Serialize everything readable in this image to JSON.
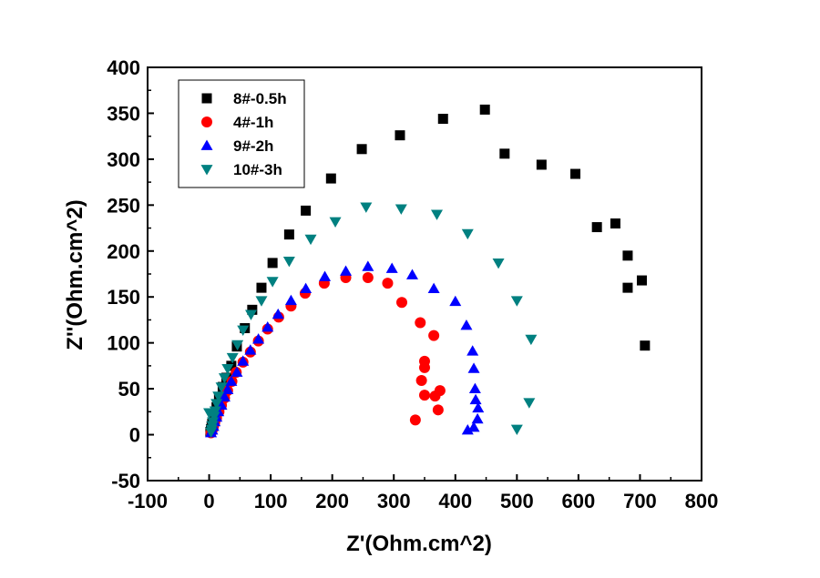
{
  "chart_data": {
    "type": "scatter",
    "title": "",
    "xlabel": "Z'(Ohm.cm^2)",
    "ylabel": "Z''(Ohm.cm^2)",
    "xlim": [
      -100,
      800
    ],
    "ylim": [
      -50,
      400
    ],
    "x_ticks": [
      "-100",
      "0",
      "100",
      "200",
      "300",
      "400",
      "500",
      "600",
      "700",
      "800"
    ],
    "y_ticks": [
      "-50",
      "0",
      "50",
      "100",
      "150",
      "200",
      "250",
      "300",
      "350",
      "400"
    ],
    "grid": false,
    "legend_position": "top-left",
    "series": [
      {
        "name": "8#-0.5h",
        "marker": "square",
        "color": "#000000",
        "points": [
          [
            2,
            3
          ],
          [
            3,
            6
          ],
          [
            4,
            9
          ],
          [
            5,
            12
          ],
          [
            7,
            16
          ],
          [
            9,
            22
          ],
          [
            12,
            30
          ],
          [
            16,
            40
          ],
          [
            22,
            52
          ],
          [
            28,
            62
          ],
          [
            36,
            75
          ],
          [
            45,
            96
          ],
          [
            58,
            116
          ],
          [
            70,
            136
          ],
          [
            85,
            160
          ],
          [
            103,
            187
          ],
          [
            130,
            218
          ],
          [
            157,
            244
          ],
          [
            198,
            279
          ],
          [
            248,
            311
          ],
          [
            310,
            326
          ],
          [
            380,
            344
          ],
          [
            448,
            354
          ],
          [
            480,
            306
          ],
          [
            540,
            294
          ],
          [
            595,
            284
          ],
          [
            630,
            226
          ],
          [
            660,
            230
          ],
          [
            680,
            195
          ],
          [
            680,
            160
          ],
          [
            703,
            168
          ],
          [
            708,
            97
          ]
        ]
      },
      {
        "name": "4#-1h",
        "marker": "circle",
        "color": "#ff0000",
        "points": [
          [
            3,
            2
          ],
          [
            5,
            5
          ],
          [
            7,
            9
          ],
          [
            9,
            13
          ],
          [
            12,
            18
          ],
          [
            16,
            25
          ],
          [
            20,
            32
          ],
          [
            25,
            40
          ],
          [
            30,
            48
          ],
          [
            37,
            58
          ],
          [
            44,
            68
          ],
          [
            55,
            79
          ],
          [
            67,
            90
          ],
          [
            80,
            102
          ],
          [
            95,
            115
          ],
          [
            113,
            128
          ],
          [
            133,
            140
          ],
          [
            156,
            154
          ],
          [
            187,
            165
          ],
          [
            222,
            171
          ],
          [
            258,
            171
          ],
          [
            290,
            165
          ],
          [
            313,
            144
          ],
          [
            343,
            122
          ],
          [
            365,
            108
          ],
          [
            350,
            80
          ],
          [
            350,
            73
          ],
          [
            345,
            59
          ],
          [
            350,
            43
          ],
          [
            367,
            42
          ],
          [
            375,
            48
          ],
          [
            372,
            27
          ],
          [
            335,
            16
          ]
        ]
      },
      {
        "name": "9#-2h",
        "marker": "triangle-up",
        "color": "#0000ff",
        "points": [
          [
            3,
            2
          ],
          [
            5,
            5
          ],
          [
            7,
            9
          ],
          [
            9,
            14
          ],
          [
            12,
            19
          ],
          [
            15,
            25
          ],
          [
            20,
            32
          ],
          [
            25,
            41
          ],
          [
            30,
            49
          ],
          [
            36,
            58
          ],
          [
            45,
            68
          ],
          [
            55,
            80
          ],
          [
            67,
            92
          ],
          [
            80,
            104
          ],
          [
            95,
            117
          ],
          [
            112,
            131
          ],
          [
            133,
            146
          ],
          [
            157,
            159
          ],
          [
            188,
            172
          ],
          [
            222,
            178
          ],
          [
            258,
            183
          ],
          [
            297,
            181
          ],
          [
            330,
            174
          ],
          [
            365,
            159
          ],
          [
            400,
            145
          ],
          [
            418,
            119
          ],
          [
            428,
            91
          ],
          [
            430,
            72
          ],
          [
            432,
            50
          ],
          [
            433,
            38
          ],
          [
            437,
            29
          ],
          [
            436,
            17
          ],
          [
            430,
            8
          ],
          [
            420,
            5
          ]
        ]
      },
      {
        "name": "10#-3h",
        "marker": "triangle-down",
        "color": "#008080",
        "points": [
          [
            3,
            3
          ],
          [
            4,
            6
          ],
          [
            5,
            10
          ],
          [
            6,
            14
          ],
          [
            8,
            20
          ],
          [
            10,
            26
          ],
          [
            12,
            34
          ],
          [
            15,
            42
          ],
          [
            20,
            52
          ],
          [
            25,
            62
          ],
          [
            30,
            72
          ],
          [
            38,
            84
          ],
          [
            46,
            98
          ],
          [
            55,
            114
          ],
          [
            68,
            131
          ],
          [
            85,
            146
          ],
          [
            103,
            167
          ],
          [
            130,
            189
          ],
          [
            165,
            213
          ],
          [
            205,
            232
          ],
          [
            255,
            248
          ],
          [
            312,
            246
          ],
          [
            370,
            240
          ],
          [
            420,
            219
          ],
          [
            470,
            187
          ],
          [
            500,
            146
          ],
          [
            523,
            104
          ],
          [
            520,
            35
          ],
          [
            500,
            6
          ],
          [
            0,
            24
          ]
        ]
      }
    ]
  }
}
